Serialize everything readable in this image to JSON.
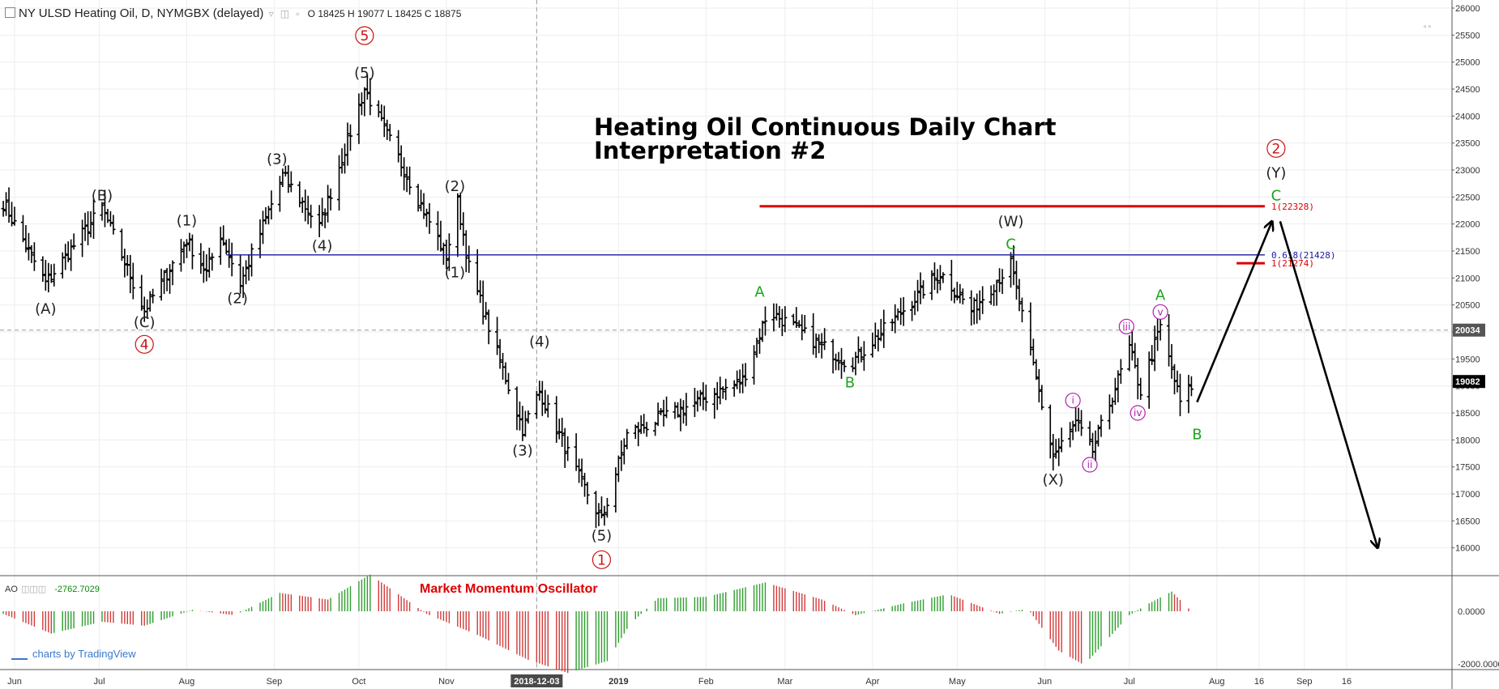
{
  "header": {
    "title": "NY ULSD Heating Oil, D, NYMGBX (delayed)",
    "ohlc": "O 18425  H 19077  L 18425  C 18875"
  },
  "chart_title_lines": [
    "Heating Oil Continuous Daily Chart",
    "Interpretation #2"
  ],
  "oscillator": {
    "name": "AO",
    "value": "-2762.7029",
    "title": "Market Momentum Oscillator",
    "axis_labels": [
      "0.0000",
      "-2000.0000"
    ]
  },
  "footer": {
    "logo_text": "charts by TradingView"
  },
  "colors": {
    "bar": "#000000",
    "red_line": "#dd0000",
    "blue_line": "#1a1aa0",
    "wave_black": "#222222",
    "wave_green": "#1fa31f",
    "wave_red": "#cc1111",
    "wave_magenta": "#b020b0",
    "ao_up": "#2e9e2e",
    "ao_down": "#d13a3a",
    "grid": "#eeeeee"
  },
  "chart_data": [
    {
      "type": "ohlc",
      "x_labels": [
        "Jun",
        "Jul",
        "Aug",
        "Sep",
        "Oct",
        "Nov",
        "2018-12-03",
        "2019",
        "Feb",
        "Mar",
        "Apr",
        "May",
        "Jun",
        "Jul",
        "Aug",
        "16",
        "Sep",
        "16"
      ],
      "y_ticks": [
        16000,
        16500,
        17000,
        17500,
        18000,
        18500,
        19000,
        19500,
        20000,
        20500,
        21000,
        21500,
        22000,
        22500,
        23000,
        23500,
        24000,
        24500,
        25000,
        25500,
        26000
      ],
      "ylim": [
        15500,
        26150
      ],
      "last_price": "19082",
      "crosshair_price": "20034",
      "pivots": [
        [
          "2018-05-28",
          22400
        ],
        [
          "2018-06-12",
          20900
        ],
        [
          "2018-07-02",
          22300
        ],
        [
          "2018-07-17",
          20400
        ],
        [
          "2018-08-01",
          21700
        ],
        [
          "2018-08-08",
          21100
        ],
        [
          "2018-08-13",
          21800
        ],
        [
          "2018-08-20",
          20900
        ],
        [
          "2018-09-04",
          22900
        ],
        [
          "2018-09-17",
          21950
        ],
        [
          "2018-10-03",
          24500
        ],
        [
          "2018-11-01",
          21400
        ],
        [
          "2018-11-05",
          22400
        ],
        [
          "2018-11-09",
          21200
        ],
        [
          "2018-11-28",
          18200
        ],
        [
          "2018-12-04",
          18900
        ],
        [
          "2018-12-18",
          17300
        ],
        [
          "2018-12-26",
          16500
        ],
        [
          "2019-01-04",
          18100
        ],
        [
          "2019-02-14",
          19100
        ],
        [
          "2019-02-23",
          20400
        ],
        [
          "2019-03-24",
          19400
        ],
        [
          "2019-04-25",
          21100
        ],
        [
          "2019-05-06",
          20400
        ],
        [
          "2019-05-20",
          21250
        ],
        [
          "2019-06-04",
          17700
        ],
        [
          "2019-06-12",
          18300
        ],
        [
          "2019-06-18",
          17800
        ],
        [
          "2019-07-01",
          19700
        ],
        [
          "2019-07-05",
          18900
        ],
        [
          "2019-07-12",
          20100
        ],
        [
          "2019-07-19",
          18700
        ],
        [
          "2019-07-23",
          19000
        ]
      ],
      "levels": [
        {
          "price": 22328,
          "label": "1(22328)",
          "color": "#dd0000",
          "start": "2019-02-20",
          "end": "2019-08-18"
        },
        {
          "price": 21428,
          "label": "0.618(21428)",
          "color": "#1a1aa0",
          "start": "2018-08-15",
          "end": "2019-08-18"
        },
        {
          "price": 21274,
          "label": "1(21274)",
          "color": "#dd0000",
          "start": "2019-08-08",
          "end": "2019-08-18"
        }
      ],
      "projection": [
        [
          "2019-07-25",
          18700
        ],
        [
          "2019-08-22",
          22200
        ],
        [
          "2019-09-27",
          16000
        ]
      ],
      "wave_labels": [
        {
          "text": "(A)",
          "date": "2018-06-12",
          "price": 20430,
          "color": "#222222",
          "circled": false
        },
        {
          "text": "(B)",
          "date": "2018-07-02",
          "price": 22530,
          "color": "#222222",
          "circled": false
        },
        {
          "text": "(C)",
          "date": "2018-07-17",
          "price": 20180,
          "color": "#222222",
          "circled": false
        },
        {
          "text": "4",
          "date": "2018-07-17",
          "price": 19770,
          "color": "#cc1111",
          "circled": true
        },
        {
          "text": "(1)",
          "date": "2018-08-01",
          "price": 22060,
          "color": "#222222",
          "circled": false
        },
        {
          "text": "(2)",
          "date": "2018-08-19",
          "price": 20620,
          "color": "#222222",
          "circled": false
        },
        {
          "text": "(3)",
          "date": "2018-09-02",
          "price": 23200,
          "color": "#222222",
          "circled": false
        },
        {
          "text": "(4)",
          "date": "2018-09-18",
          "price": 21600,
          "color": "#222222",
          "circled": false
        },
        {
          "text": "(5)",
          "date": "2018-10-03",
          "price": 24800,
          "color": "#222222",
          "circled": false
        },
        {
          "text": "5",
          "date": "2018-10-03",
          "price": 25490,
          "color": "#cc1111",
          "circled": true
        },
        {
          "text": "(2)",
          "date": "2018-11-04",
          "price": 22700,
          "color": "#222222",
          "circled": false
        },
        {
          "text": "(1)",
          "date": "2018-11-04",
          "price": 21100,
          "color": "#222222",
          "circled": false
        },
        {
          "text": "(4)",
          "date": "2018-12-04",
          "price": 19820,
          "color": "#222222",
          "circled": false
        },
        {
          "text": "(3)",
          "date": "2018-11-28",
          "price": 17800,
          "color": "#222222",
          "circled": false
        },
        {
          "text": "(5)",
          "date": "2018-12-26",
          "price": 16230,
          "color": "#222222",
          "circled": false
        },
        {
          "text": "1",
          "date": "2018-12-26",
          "price": 15780,
          "color": "#cc1111",
          "circled": true
        },
        {
          "text": "A",
          "date": "2019-02-20",
          "price": 20740,
          "color": "#1fa31f",
          "circled": false
        },
        {
          "text": "B",
          "date": "2019-03-24",
          "price": 19060,
          "color": "#1fa31f",
          "circled": false
        },
        {
          "text": "(W)",
          "date": "2019-05-20",
          "price": 22050,
          "color": "#222222",
          "circled": false
        },
        {
          "text": "C",
          "date": "2019-05-20",
          "price": 21630,
          "color": "#1fa31f",
          "circled": false
        },
        {
          "text": "(X)",
          "date": "2019-06-04",
          "price": 17260,
          "color": "#222222",
          "circled": false
        },
        {
          "text": "i",
          "date": "2019-06-11",
          "price": 18730,
          "color": "#b020b0",
          "circled": true
        },
        {
          "text": "ii",
          "date": "2019-06-17",
          "price": 17540,
          "color": "#b020b0",
          "circled": true
        },
        {
          "text": "iii",
          "date": "2019-06-30",
          "price": 20100,
          "color": "#b020b0",
          "circled": true
        },
        {
          "text": "iv",
          "date": "2019-07-04",
          "price": 18500,
          "color": "#b020b0",
          "circled": true
        },
        {
          "text": "v",
          "date": "2019-07-12",
          "price": 20370,
          "color": "#b020b0",
          "circled": true
        },
        {
          "text": "A",
          "date": "2019-07-12",
          "price": 20680,
          "color": "#1fa31f",
          "circled": false
        },
        {
          "text": "B",
          "date": "2019-07-25",
          "price": 18100,
          "color": "#1fa31f",
          "circled": false
        },
        {
          "text": "2",
          "date": "2019-08-22",
          "price": 23400,
          "color": "#cc1111",
          "circled": true
        },
        {
          "text": "(Y)",
          "date": "2019-08-22",
          "price": 22950,
          "color": "#222222",
          "circled": false
        },
        {
          "text": "C",
          "date": "2019-08-22",
          "price": 22530,
          "color": "#1fa31f",
          "circled": false
        }
      ]
    },
    {
      "type": "histogram",
      "name": "AO",
      "pivots": [
        [
          "2018-05-28",
          -100
        ],
        [
          "2018-06-14",
          -850
        ],
        [
          "2018-07-02",
          -400
        ],
        [
          "2018-07-17",
          -550
        ],
        [
          "2018-08-03",
          50
        ],
        [
          "2018-08-18",
          -150
        ],
        [
          "2018-09-03",
          700
        ],
        [
          "2018-09-20",
          450
        ],
        [
          "2018-10-05",
          1400
        ],
        [
          "2018-10-25",
          -100
        ],
        [
          "2018-11-12",
          -900
        ],
        [
          "2018-11-30",
          -1850
        ],
        [
          "2018-12-14",
          -2350
        ],
        [
          "2018-12-28",
          -1900
        ],
        [
          "2019-01-05",
          -500
        ],
        [
          "2019-01-15",
          500
        ],
        [
          "2019-02-01",
          550
        ],
        [
          "2019-02-22",
          1100
        ],
        [
          "2019-03-14",
          450
        ],
        [
          "2019-03-26",
          -150
        ],
        [
          "2019-04-12",
          300
        ],
        [
          "2019-04-28",
          650
        ],
        [
          "2019-05-16",
          -100
        ],
        [
          "2019-05-26",
          100
        ],
        [
          "2019-06-06",
          -1500
        ],
        [
          "2019-06-15",
          -2050
        ],
        [
          "2019-07-01",
          -150
        ],
        [
          "2019-07-08",
          300
        ],
        [
          "2019-07-16",
          750
        ],
        [
          "2019-07-23",
          0
        ]
      ]
    }
  ]
}
